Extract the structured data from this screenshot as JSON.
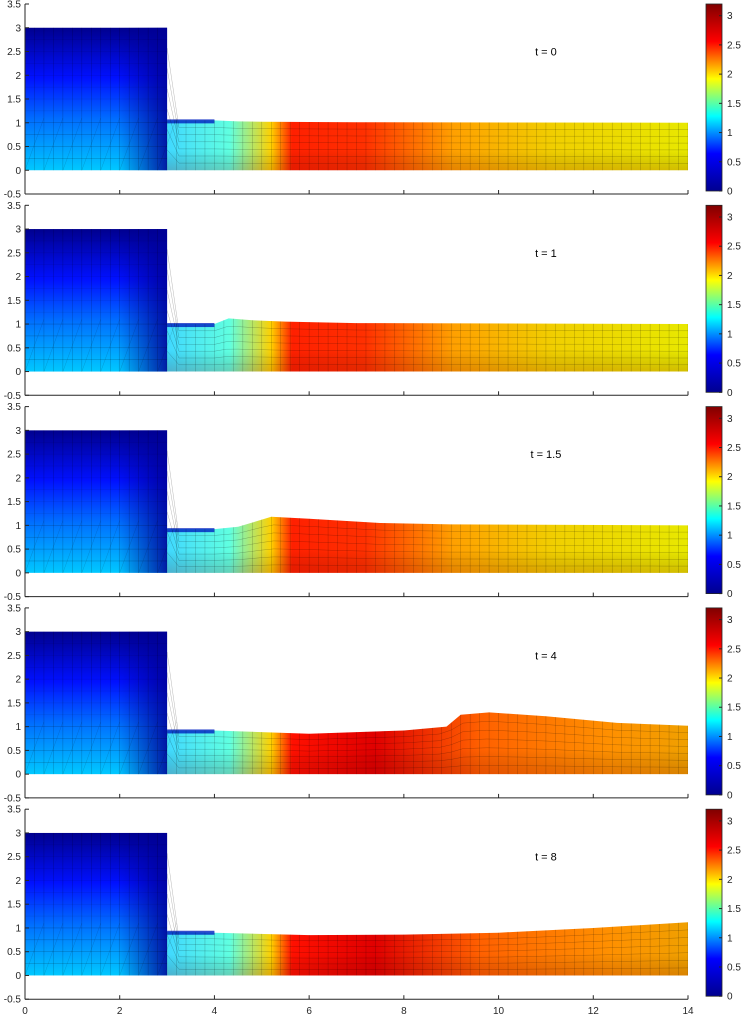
{
  "colors": {
    "jet_stops": [
      "#00008f",
      "#0000ff",
      "#00ffff",
      "#ffff00",
      "#ff0000",
      "#800000"
    ],
    "axis": "#262626"
  },
  "chart_data": {
    "type": "heatmap",
    "description_type": "stacked 2D colored mesh panels with colorbars",
    "shared_x": {
      "lim": [
        0,
        14
      ],
      "ticks": [
        0,
        2,
        4,
        6,
        8,
        10,
        12,
        14
      ],
      "tick_labels": [
        "0",
        "2",
        "4",
        "6",
        "8",
        "10",
        "12",
        "14"
      ]
    },
    "y_axis": {
      "lim": [
        -0.5,
        3.5
      ],
      "ticks": [
        -0.5,
        0,
        0.5,
        1,
        1.5,
        2,
        2.5,
        3,
        3.5
      ],
      "tick_labels": [
        "-0.5",
        "0",
        "0.5",
        "1",
        "1.5",
        "2",
        "2.5",
        "3",
        "3.5"
      ]
    },
    "colorbar": {
      "colormap": "jet",
      "lim": [
        0,
        3.2
      ],
      "ticks": [
        0,
        0.5,
        1,
        1.5,
        2,
        2.5,
        3
      ],
      "tick_labels": [
        "0",
        "0.5",
        "1",
        "1.5",
        "2",
        "2.5",
        "3"
      ]
    },
    "grid": false,
    "panels": [
      {
        "label": "t = 0",
        "reservoir": {
          "x": [
            0,
            3
          ],
          "height": 3.0
        },
        "step_height": 1.05,
        "surface": [
          [
            3,
            1.05
          ],
          [
            4,
            1.05
          ],
          [
            4.5,
            1.03
          ],
          [
            5,
            1.02
          ],
          [
            7,
            1.01
          ],
          [
            14,
            1.0
          ]
        ],
        "max_value": 3.0
      },
      {
        "label": "t = 1",
        "reservoir": {
          "x": [
            0,
            3
          ],
          "height": 3.0
        },
        "step_height": 1.0,
        "surface": [
          [
            3,
            1.0
          ],
          [
            4,
            1.0
          ],
          [
            4.3,
            1.12
          ],
          [
            4.8,
            1.08
          ],
          [
            5.5,
            1.05
          ],
          [
            7,
            1.02
          ],
          [
            14,
            1.0
          ]
        ],
        "max_value": 3.1
      },
      {
        "label": "t = 1.5",
        "reservoir": {
          "x": [
            0,
            3
          ],
          "height": 3.0
        },
        "step_height": 0.92,
        "surface": [
          [
            3,
            0.92
          ],
          [
            4,
            0.92
          ],
          [
            4.5,
            0.97
          ],
          [
            5.2,
            1.18
          ],
          [
            6,
            1.14
          ],
          [
            7.5,
            1.05
          ],
          [
            9,
            1.02
          ],
          [
            14,
            1.0
          ]
        ],
        "max_value": 3.2
      },
      {
        "label": "t = 4",
        "reservoir": {
          "x": [
            0,
            3
          ],
          "height": 3.0
        },
        "step_height": 0.92,
        "surface": [
          [
            3,
            0.92
          ],
          [
            4,
            0.92
          ],
          [
            6,
            0.85
          ],
          [
            8,
            0.92
          ],
          [
            8.9,
            1.0
          ],
          [
            9.2,
            1.25
          ],
          [
            9.8,
            1.3
          ],
          [
            11,
            1.22
          ],
          [
            12.5,
            1.08
          ],
          [
            14,
            1.02
          ]
        ],
        "max_value": 3.2
      },
      {
        "label": "t = 8",
        "reservoir": {
          "x": [
            0,
            3
          ],
          "height": 3.0
        },
        "step_height": 0.92,
        "surface": [
          [
            3,
            0.92
          ],
          [
            4,
            0.9
          ],
          [
            6,
            0.85
          ],
          [
            8,
            0.86
          ],
          [
            10,
            0.9
          ],
          [
            12,
            1.0
          ],
          [
            14,
            1.12
          ]
        ],
        "max_value": 3.2
      }
    ]
  }
}
